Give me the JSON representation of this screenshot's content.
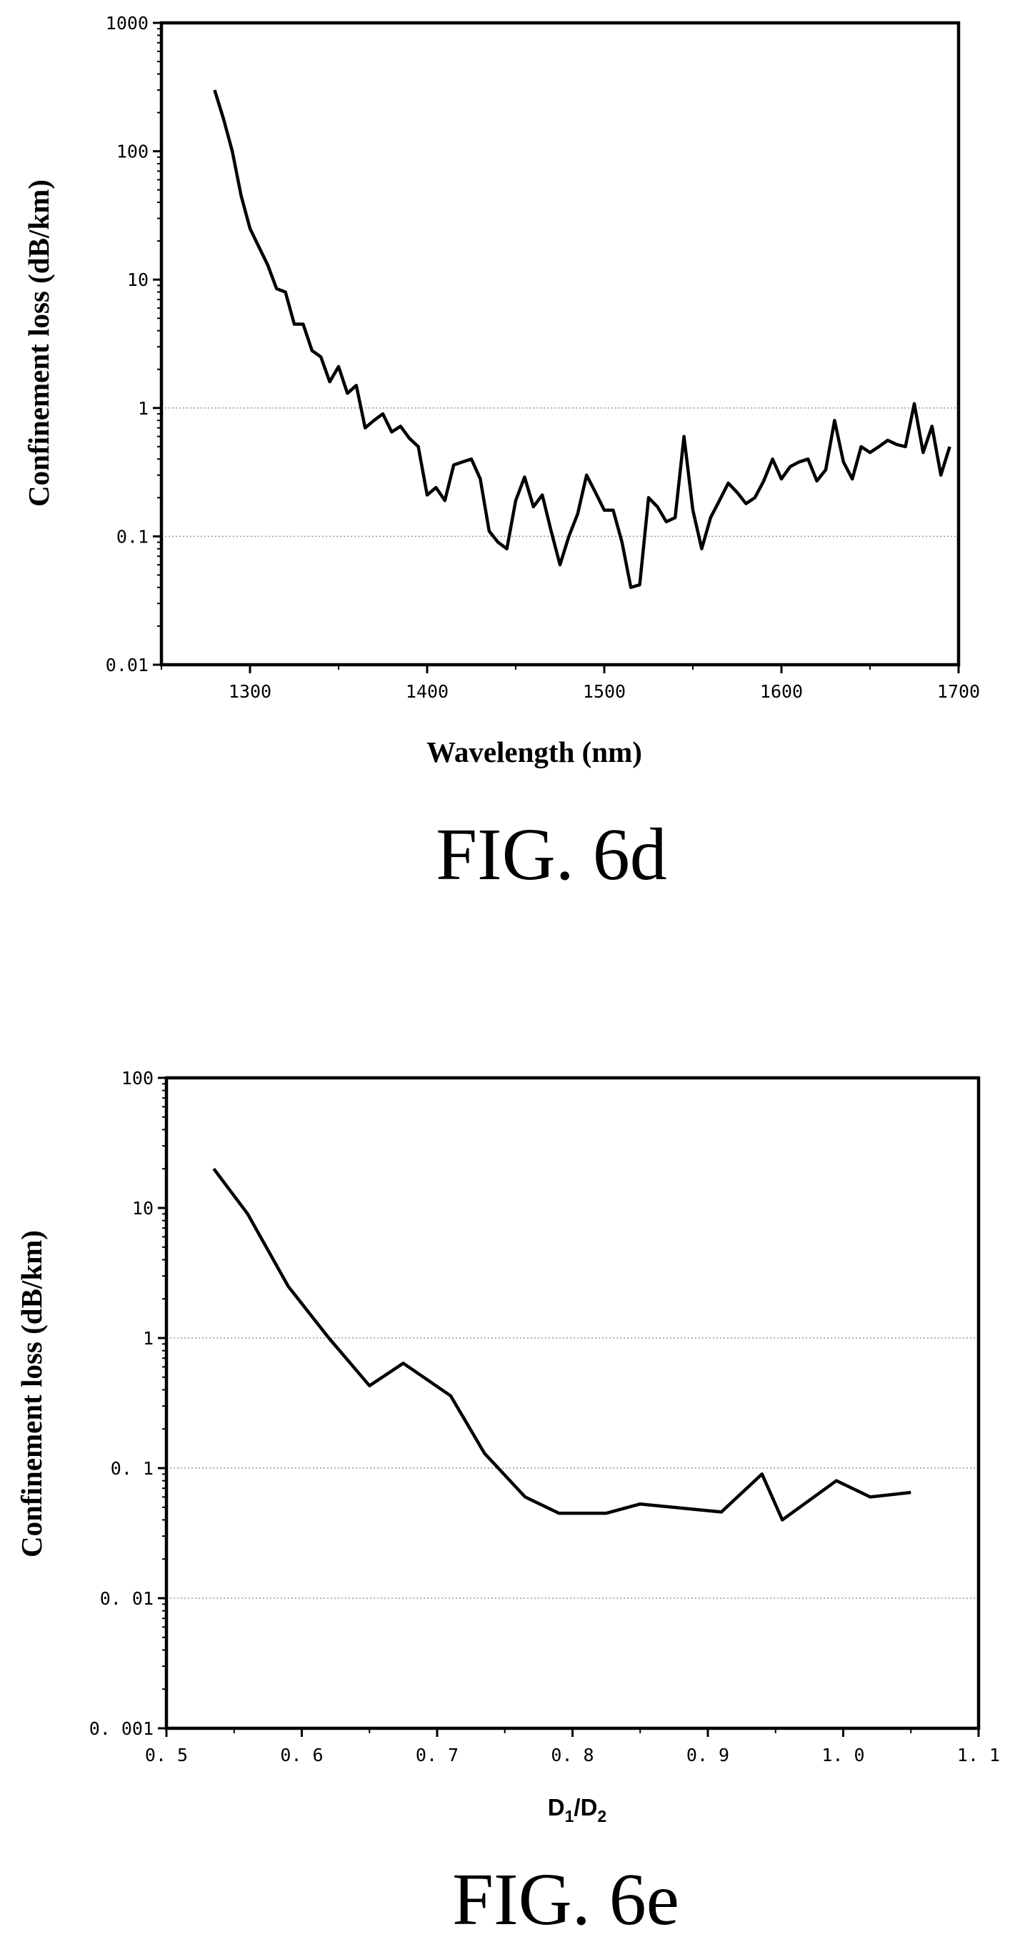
{
  "chart_data": [
    {
      "type": "line",
      "caption": "FIG. 6d",
      "xlabel": "Wavelength (nm)",
      "ylabel": "Confinement loss (dB/km)",
      "xlim": [
        1250,
        1700
      ],
      "ylim": [
        0.01,
        1000
      ],
      "yscale": "log",
      "x_ticks": [
        1300,
        1400,
        1500,
        1600,
        1700
      ],
      "x_tick_labels": [
        "1300",
        "1400",
        "1500",
        "1600",
        "1700"
      ],
      "y_ticks": [
        0.01,
        0.1,
        1,
        10,
        100,
        1000
      ],
      "y_tick_labels": [
        "0.01",
        "0.1",
        "1",
        "10",
        "100",
        "1000"
      ],
      "grid": "dotted horizontal lines at 0.1 and 1",
      "colors": {
        "line": "#000000",
        "grid": "#999999"
      },
      "series": [
        {
          "x": [
            1280,
            1285,
            1290,
            1295,
            1300,
            1305,
            1310,
            1315,
            1320,
            1325,
            1330,
            1335,
            1340,
            1345,
            1350,
            1355,
            1360,
            1365,
            1370,
            1375,
            1380,
            1385,
            1390,
            1395,
            1400,
            1405,
            1410,
            1415,
            1420,
            1425,
            1430,
            1435,
            1440,
            1445,
            1450,
            1455,
            1460,
            1465,
            1470,
            1475,
            1480,
            1485,
            1490,
            1495,
            1500,
            1505,
            1510,
            1515,
            1520,
            1525,
            1530,
            1535,
            1540,
            1545,
            1550,
            1555,
            1560,
            1565,
            1570,
            1575,
            1580,
            1585,
            1590,
            1595,
            1600,
            1605,
            1610,
            1615,
            1620,
            1625,
            1630,
            1635,
            1640,
            1645,
            1650,
            1655,
            1660,
            1665,
            1670,
            1675,
            1680,
            1685,
            1690,
            1695
          ],
          "y": [
            300,
            180,
            100,
            45,
            25,
            18,
            13,
            8.5,
            8,
            4.5,
            4.5,
            2.8,
            2.5,
            1.6,
            2.1,
            1.3,
            1.5,
            0.7,
            0.8,
            0.9,
            0.65,
            0.72,
            0.58,
            0.5,
            0.21,
            0.24,
            0.19,
            0.36,
            0.38,
            0.4,
            0.28,
            0.11,
            0.09,
            0.08,
            0.19,
            0.29,
            0.17,
            0.21,
            0.11,
            0.06,
            0.1,
            0.15,
            0.3,
            0.22,
            0.16,
            0.16,
            0.09,
            0.04,
            0.042,
            0.2,
            0.17,
            0.13,
            0.14,
            0.6,
            0.16,
            0.08,
            0.14,
            0.19,
            0.26,
            0.22,
            0.18,
            0.2,
            0.27,
            0.4,
            0.28,
            0.35,
            0.38,
            0.4,
            0.27,
            0.33,
            0.8,
            0.38,
            0.28,
            0.5,
            0.45,
            0.5,
            0.56,
            0.52,
            0.5,
            1.08,
            0.45,
            0.72,
            0.3,
            0.5
          ]
        }
      ]
    },
    {
      "type": "line",
      "caption": "FIG. 6e",
      "xlabel_main": "D",
      "xlabel_sub1": "1",
      "xlabel_mid": "/D",
      "xlabel_sub2": "2",
      "ylabel": "Confinement loss (dB/km)",
      "xlim": [
        0.5,
        1.1
      ],
      "ylim": [
        0.001,
        100
      ],
      "yscale": "log",
      "x_ticks": [
        0.5,
        0.6,
        0.7,
        0.8,
        0.9,
        1.0,
        1.1
      ],
      "x_tick_labels": [
        "0. 5",
        "0. 6",
        "0. 7",
        "0. 8",
        "0. 9",
        "1. 0",
        "1. 1"
      ],
      "y_ticks": [
        0.001,
        0.01,
        0.1,
        1,
        10,
        100
      ],
      "y_tick_labels": [
        "0. 001",
        "0. 01",
        "0. 1",
        "1",
        "10",
        "100"
      ],
      "grid": "dotted horizontal lines at 0.01, 0.1 and 1",
      "colors": {
        "line": "#000000",
        "grid": "#999999"
      },
      "series": [
        {
          "x": [
            0.535,
            0.56,
            0.59,
            0.62,
            0.65,
            0.675,
            0.71,
            0.735,
            0.765,
            0.79,
            0.825,
            0.85,
            0.91,
            0.94,
            0.955,
            0.995,
            1.02,
            1.05
          ],
          "y": [
            20,
            9,
            2.5,
            1.0,
            0.43,
            0.64,
            0.36,
            0.13,
            0.06,
            0.045,
            0.045,
            0.053,
            0.046,
            0.09,
            0.04,
            0.08,
            0.06,
            0.065
          ]
        }
      ]
    }
  ]
}
